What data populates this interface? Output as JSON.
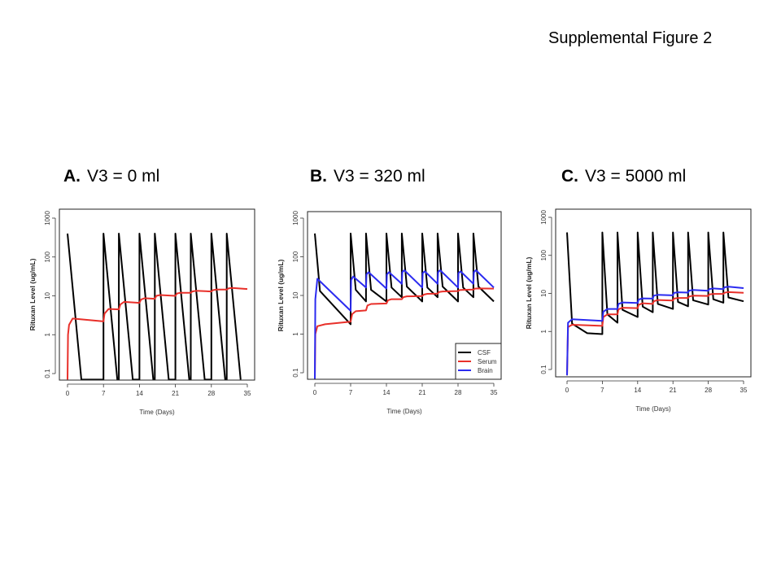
{
  "figure_title": "Supplemental Figure 2",
  "chart_data": [
    {
      "type": "line",
      "letter": "A.",
      "title": "V3 = 0 ml",
      "xlabel": "Time (Days)",
      "ylabel": "Rituxan Level (ug/mL)",
      "xlim": [
        0,
        35
      ],
      "ylim": [
        0.1,
        1000
      ],
      "yscale": "log",
      "xticks": [
        0,
        7,
        14,
        21,
        28,
        35
      ],
      "yticks": [
        0.1,
        1,
        10,
        100,
        1000
      ],
      "ytick_labels": [
        "0.1",
        "1",
        "10",
        "100",
        "1000"
      ],
      "legend": null,
      "series": [
        {
          "name": "CSF",
          "color": "#000000",
          "points": [
            [
              0,
              400
            ],
            [
              2.7,
              0.07
            ],
            [
              7,
              0.07
            ],
            [
              7,
              400
            ],
            [
              9.7,
              0.07
            ],
            [
              10,
              0.07
            ],
            [
              10,
              400
            ],
            [
              12.7,
              0.07
            ],
            [
              14,
              0.07
            ],
            [
              14,
              400
            ],
            [
              16.7,
              0.07
            ],
            [
              17,
              0.07
            ],
            [
              17,
              400
            ],
            [
              19.7,
              0.07
            ],
            [
              21,
              0.07
            ],
            [
              21,
              400
            ],
            [
              23.7,
              0.07
            ],
            [
              24,
              0.07
            ],
            [
              24,
              400
            ],
            [
              26.7,
              0.07
            ],
            [
              28,
              0.07
            ],
            [
              28,
              400
            ],
            [
              30.7,
              0.07
            ],
            [
              31,
              0.07
            ],
            [
              31,
              400
            ],
            [
              33.7,
              0.07
            ]
          ]
        },
        {
          "name": "Serum",
          "color": "#e8302a",
          "points": [
            [
              0,
              0.07
            ],
            [
              0.1,
              1
            ],
            [
              0.3,
              1.8
            ],
            [
              1,
              2.6
            ],
            [
              7,
              2.2
            ],
            [
              7.2,
              3.5
            ],
            [
              8,
              4.6
            ],
            [
              10,
              4.5
            ],
            [
              10.3,
              6
            ],
            [
              11,
              7
            ],
            [
              14,
              6.6
            ],
            [
              14.3,
              8
            ],
            [
              15,
              8.7
            ],
            [
              17,
              8.4
            ],
            [
              17.3,
              10
            ],
            [
              18,
              10.5
            ],
            [
              21,
              10
            ],
            [
              21.3,
              11.5
            ],
            [
              22,
              12
            ],
            [
              24,
              12
            ],
            [
              24.3,
              13
            ],
            [
              25,
              13.5
            ],
            [
              28,
              13
            ],
            [
              28.3,
              14
            ],
            [
              29,
              14.5
            ],
            [
              31,
              14.5
            ],
            [
              31.3,
              15.5
            ],
            [
              32,
              16
            ],
            [
              35,
              15
            ]
          ]
        }
      ]
    },
    {
      "type": "line",
      "letter": "B.",
      "title": "V3 = 320 ml",
      "xlabel": "Time (Days)",
      "ylabel": "Rituxan Level (ug/mL)",
      "xlim": [
        0,
        35
      ],
      "ylim": [
        0.1,
        1000
      ],
      "yscale": "log",
      "xticks": [
        0,
        7,
        14,
        21,
        28,
        35
      ],
      "yticks": [
        0.1,
        1,
        10,
        100,
        1000
      ],
      "ytick_labels": [
        "0.1",
        "1",
        "10",
        "100",
        "1000"
      ],
      "legend": "bottom-right",
      "series": [
        {
          "name": "CSF",
          "color": "#000000",
          "points": [
            [
              0,
              400
            ],
            [
              1,
              13
            ],
            [
              7,
              1.8
            ],
            [
              7,
              400
            ],
            [
              8,
              14
            ],
            [
              10,
              7
            ],
            [
              10,
              400
            ],
            [
              11,
              14
            ],
            [
              14,
              7
            ],
            [
              14,
              400
            ],
            [
              15,
              16
            ],
            [
              17,
              9
            ],
            [
              17,
              400
            ],
            [
              18,
              17
            ],
            [
              21,
              7
            ],
            [
              21,
              400
            ],
            [
              22,
              16
            ],
            [
              24,
              9
            ],
            [
              24,
              400
            ],
            [
              25,
              17
            ],
            [
              28,
              7
            ],
            [
              28,
              400
            ],
            [
              29,
              16
            ],
            [
              31,
              9
            ],
            [
              31,
              400
            ],
            [
              32,
              17
            ],
            [
              35,
              7
            ]
          ]
        },
        {
          "name": "Serum",
          "color": "#e8302a",
          "points": [
            [
              0,
              0.07
            ],
            [
              0.1,
              1
            ],
            [
              0.5,
              1.6
            ],
            [
              2,
              1.8
            ],
            [
              7,
              2.1
            ],
            [
              7.3,
              3.3
            ],
            [
              8,
              3.9
            ],
            [
              10,
              4.1
            ],
            [
              10.3,
              5.5
            ],
            [
              11,
              6
            ],
            [
              14,
              6.2
            ],
            [
              14.3,
              7.5
            ],
            [
              15,
              8
            ],
            [
              17,
              8
            ],
            [
              17.3,
              9
            ],
            [
              18,
              9.5
            ],
            [
              21,
              9.6
            ],
            [
              21.3,
              10.5
            ],
            [
              22,
              11
            ],
            [
              24,
              11.2
            ],
            [
              24.3,
              12.3
            ],
            [
              25,
              12.7
            ],
            [
              28,
              13
            ],
            [
              28.3,
              13.8
            ],
            [
              29,
              14
            ],
            [
              31,
              14.2
            ],
            [
              31.3,
              15
            ],
            [
              32,
              15.2
            ],
            [
              35,
              15
            ]
          ]
        },
        {
          "name": "Brain",
          "color": "#2b2bf0",
          "points": [
            [
              0,
              0.07
            ],
            [
              0.1,
              8
            ],
            [
              0.5,
              27
            ],
            [
              7,
              4
            ],
            [
              7.1,
              25
            ],
            [
              7.5,
              31
            ],
            [
              10,
              16
            ],
            [
              10.1,
              35
            ],
            [
              10.5,
              40
            ],
            [
              14,
              15
            ],
            [
              14.1,
              35
            ],
            [
              14.5,
              40
            ],
            [
              17,
              20
            ],
            [
              17.1,
              40
            ],
            [
              17.5,
              45
            ],
            [
              21,
              16
            ],
            [
              21.1,
              38
            ],
            [
              21.5,
              42
            ],
            [
              24,
              20
            ],
            [
              24.1,
              40
            ],
            [
              24.5,
              45
            ],
            [
              28,
              16
            ],
            [
              28.1,
              38
            ],
            [
              28.5,
              42
            ],
            [
              31,
              20
            ],
            [
              31.1,
              40
            ],
            [
              31.5,
              45
            ],
            [
              35,
              16
            ]
          ]
        }
      ]
    },
    {
      "type": "line",
      "letter": "C.",
      "title": "V3 = 5000 ml",
      "xlabel": "Time (Days)",
      "ylabel": "Rituxan Level (ug/mL)",
      "xlim": [
        0,
        35
      ],
      "ylim": [
        0.1,
        1000
      ],
      "yscale": "log",
      "xticks": [
        0,
        7,
        14,
        21,
        28,
        35
      ],
      "yticks": [
        0.1,
        1,
        10,
        100,
        1000
      ],
      "ytick_labels": [
        "0.1",
        "1",
        "10",
        "100",
        "1000"
      ],
      "legend": null,
      "series": [
        {
          "name": "CSF",
          "color": "#000000",
          "points": [
            [
              0,
              400
            ],
            [
              1,
              1.6
            ],
            [
              4,
              0.9
            ],
            [
              7,
              0.85
            ],
            [
              7,
              400
            ],
            [
              8,
              2.8
            ],
            [
              10,
              1.7
            ],
            [
              10,
              400
            ],
            [
              11,
              3.7
            ],
            [
              14,
              2.4
            ],
            [
              14,
              400
            ],
            [
              15,
              4.5
            ],
            [
              17,
              3.2
            ],
            [
              17,
              400
            ],
            [
              18,
              5.3
            ],
            [
              21,
              3.9
            ],
            [
              21,
              400
            ],
            [
              22,
              6
            ],
            [
              24,
              4.6
            ],
            [
              24,
              400
            ],
            [
              25,
              6.6
            ],
            [
              28,
              5.1
            ],
            [
              28,
              400
            ],
            [
              29,
              7
            ],
            [
              31,
              5.7
            ],
            [
              31,
              400
            ],
            [
              32,
              7.8
            ],
            [
              35,
              6.2
            ]
          ]
        },
        {
          "name": "Serum",
          "color": "#e8302a",
          "points": [
            [
              0,
              0.07
            ],
            [
              0.2,
              1.3
            ],
            [
              1,
              1.5
            ],
            [
              7,
              1.4
            ],
            [
              7.2,
              2.4
            ],
            [
              8,
              2.8
            ],
            [
              10,
              2.8
            ],
            [
              10.2,
              3.8
            ],
            [
              11,
              4.2
            ],
            [
              14,
              4.1
            ],
            [
              14.2,
              5
            ],
            [
              15,
              5.5
            ],
            [
              17,
              5.3
            ],
            [
              17.2,
              6.2
            ],
            [
              18,
              6.7
            ],
            [
              21,
              6.5
            ],
            [
              21.2,
              7.3
            ],
            [
              22,
              7.6
            ],
            [
              24,
              7.6
            ],
            [
              24.2,
              8.3
            ],
            [
              25,
              8.7
            ],
            [
              28,
              8.6
            ],
            [
              28.2,
              9.4
            ],
            [
              29,
              9.7
            ],
            [
              31,
              9.7
            ],
            [
              31.2,
              10.4
            ],
            [
              32,
              10.8
            ],
            [
              35,
              10.4
            ]
          ]
        },
        {
          "name": "Brain",
          "color": "#2b2bf0",
          "points": [
            [
              0,
              0.07
            ],
            [
              0.2,
              1.7
            ],
            [
              1,
              2.1
            ],
            [
              7,
              1.9
            ],
            [
              7.2,
              3.3
            ],
            [
              8,
              3.9
            ],
            [
              10,
              3.9
            ],
            [
              10.2,
              5.3
            ],
            [
              11,
              5.8
            ],
            [
              14,
              5.6
            ],
            [
              14.2,
              6.9
            ],
            [
              15,
              7.4
            ],
            [
              17,
              7.3
            ],
            [
              17.2,
              8.7
            ],
            [
              18,
              9.2
            ],
            [
              21,
              8.9
            ],
            [
              21.2,
              10.3
            ],
            [
              22,
              10.7
            ],
            [
              24,
              10.5
            ],
            [
              24.2,
              11.8
            ],
            [
              25,
              12.3
            ],
            [
              28,
              11.7
            ],
            [
              28.2,
              13
            ],
            [
              29,
              13.5
            ],
            [
              31,
              13
            ],
            [
              31.2,
              14.5
            ],
            [
              32,
              15
            ],
            [
              35,
              13.8
            ]
          ]
        }
      ]
    }
  ]
}
